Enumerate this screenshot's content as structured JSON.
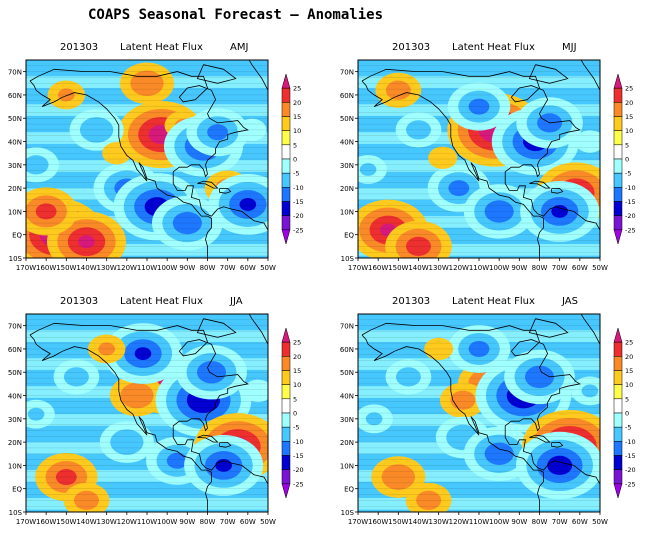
{
  "title": "COAPS Seasonal Forecast – Anomalies",
  "chart_data": [
    {
      "type": "heatmap",
      "date": "201303",
      "variable": "Latent Heat Flux",
      "season": "AMJ",
      "x_ticks": [
        "170W",
        "160W",
        "150W",
        "140W",
        "130W",
        "120W",
        "110W",
        "100W",
        "90W",
        "80W",
        "70W",
        "60W",
        "50W"
      ],
      "y_ticks": [
        "10S",
        "EQ",
        "10N",
        "20N",
        "30N",
        "40N",
        "50N",
        "60N",
        "70N"
      ],
      "xlim": [
        -170,
        -50
      ],
      "ylim": [
        -10,
        75
      ],
      "colorbar_ticks": [
        "25",
        "20",
        "15",
        "10",
        "5",
        "0",
        "-5",
        "-10",
        "-15",
        "-20",
        "-25"
      ],
      "colorbar_colors": [
        "#d7197c",
        "#ee2f2f",
        "#fa8a28",
        "#ffca1e",
        "#ffff4b",
        "#ffffff",
        "#a0ffff",
        "#46c8ff",
        "#1e78ff",
        "#0000d2",
        "#7814d2",
        "#a000e6"
      ],
      "features": [
        {
          "lon": -103,
          "lat": 43,
          "value": 20
        },
        {
          "lon": -92,
          "lat": 47,
          "value": 8
        },
        {
          "lon": -82,
          "lat": 38,
          "value": -18
        },
        {
          "lon": -75,
          "lat": 44,
          "value": -14
        },
        {
          "lon": -155,
          "lat": 0,
          "value": 22
        },
        {
          "lon": -140,
          "lat": -3,
          "value": 18
        },
        {
          "lon": -160,
          "lat": 10,
          "value": 14
        },
        {
          "lon": -120,
          "lat": 20,
          "value": -15
        },
        {
          "lon": -105,
          "lat": 12,
          "value": -20
        },
        {
          "lon": -90,
          "lat": 5,
          "value": -16
        },
        {
          "lon": -135,
          "lat": 45,
          "value": -12
        },
        {
          "lon": -150,
          "lat": 60,
          "value": 8
        },
        {
          "lon": -70,
          "lat": 20,
          "value": 10
        },
        {
          "lon": -60,
          "lat": 13,
          "value": -18
        },
        {
          "lon": -125,
          "lat": 35,
          "value": 6
        },
        {
          "lon": -165,
          "lat": 30,
          "value": -10
        },
        {
          "lon": -110,
          "lat": 65,
          "value": 12
        },
        {
          "lon": -58,
          "lat": 45,
          "value": -6
        }
      ]
    },
    {
      "type": "heatmap",
      "date": "201303",
      "variable": "Latent Heat Flux",
      "season": "MJJ",
      "x_ticks": [
        "170W",
        "160W",
        "150W",
        "140W",
        "130W",
        "120W",
        "110W",
        "100W",
        "90W",
        "80W",
        "70W",
        "60W",
        "50W"
      ],
      "y_ticks": [
        "10S",
        "EQ",
        "10N",
        "20N",
        "30N",
        "40N",
        "50N",
        "60N",
        "70N"
      ],
      "xlim": [
        -170,
        -50
      ],
      "ylim": [
        -10,
        75
      ],
      "colorbar_ticks": [
        "25",
        "20",
        "15",
        "10",
        "5",
        "0",
        "-5",
        "-10",
        "-15",
        "-20",
        "-25"
      ],
      "colorbar_colors": [
        "#d7197c",
        "#ee2f2f",
        "#fa8a28",
        "#ffca1e",
        "#ffff4b",
        "#ffffff",
        "#a0ffff",
        "#46c8ff",
        "#1e78ff",
        "#0000d2",
        "#7814d2",
        "#a000e6"
      ],
      "features": [
        {
          "lon": -102,
          "lat": 45,
          "value": 22
        },
        {
          "lon": -82,
          "lat": 40,
          "value": -20
        },
        {
          "lon": -75,
          "lat": 48,
          "value": -15
        },
        {
          "lon": -110,
          "lat": 55,
          "value": -14
        },
        {
          "lon": -155,
          "lat": 2,
          "value": 18
        },
        {
          "lon": -140,
          "lat": -5,
          "value": 15
        },
        {
          "lon": -120,
          "lat": 20,
          "value": -14
        },
        {
          "lon": -100,
          "lat": 10,
          "value": -16
        },
        {
          "lon": -62,
          "lat": 18,
          "value": 18
        },
        {
          "lon": -70,
          "lat": 10,
          "value": -18
        },
        {
          "lon": -140,
          "lat": 45,
          "value": -10
        },
        {
          "lon": -150,
          "lat": 62,
          "value": 10
        },
        {
          "lon": -128,
          "lat": 33,
          "value": 6
        },
        {
          "lon": -165,
          "lat": 28,
          "value": -8
        },
        {
          "lon": -55,
          "lat": 40,
          "value": -6
        }
      ]
    },
    {
      "type": "heatmap",
      "date": "201303",
      "variable": "Latent Heat Flux",
      "season": "JJA",
      "x_ticks": [
        "170W",
        "160W",
        "150W",
        "140W",
        "130W",
        "120W",
        "110W",
        "100W",
        "90W",
        "80W",
        "70W",
        "60W",
        "50W"
      ],
      "y_ticks": [
        "10S",
        "EQ",
        "10N",
        "20N",
        "30N",
        "40N",
        "50N",
        "60N",
        "70N"
      ],
      "xlim": [
        -170,
        -50
      ],
      "ylim": [
        -10,
        75
      ],
      "colorbar_ticks": [
        "25",
        "20",
        "15",
        "10",
        "5",
        "0",
        "-5",
        "-10",
        "-15",
        "-20",
        "-25"
      ],
      "colorbar_colors": [
        "#d7197c",
        "#ee2f2f",
        "#fa8a28",
        "#ffca1e",
        "#ffff4b",
        "#ffffff",
        "#a0ffff",
        "#46c8ff",
        "#1e78ff",
        "#0000d2",
        "#7814d2",
        "#a000e6"
      ],
      "features": [
        {
          "lon": -100,
          "lat": 45,
          "value": 18
        },
        {
          "lon": -115,
          "lat": 40,
          "value": 12
        },
        {
          "lon": -82,
          "lat": 38,
          "value": -22
        },
        {
          "lon": -78,
          "lat": 50,
          "value": -16
        },
        {
          "lon": -112,
          "lat": 58,
          "value": -18
        },
        {
          "lon": -150,
          "lat": 5,
          "value": 14
        },
        {
          "lon": -140,
          "lat": -5,
          "value": 10
        },
        {
          "lon": -120,
          "lat": 20,
          "value": -12
        },
        {
          "lon": -95,
          "lat": 12,
          "value": -14
        },
        {
          "lon": -65,
          "lat": 18,
          "value": 20
        },
        {
          "lon": -72,
          "lat": 10,
          "value": -18
        },
        {
          "lon": -145,
          "lat": 48,
          "value": -10
        },
        {
          "lon": -130,
          "lat": 60,
          "value": 8
        },
        {
          "lon": -165,
          "lat": 32,
          "value": -8
        },
        {
          "lon": -55,
          "lat": 42,
          "value": -6
        }
      ]
    },
    {
      "type": "heatmap",
      "date": "201303",
      "variable": "Latent Heat Flux",
      "season": "JAS",
      "x_ticks": [
        "170W",
        "160W",
        "150W",
        "140W",
        "130W",
        "120W",
        "110W",
        "100W",
        "90W",
        "80W",
        "70W",
        "60W",
        "50W"
      ],
      "y_ticks": [
        "10S",
        "EQ",
        "10N",
        "20N",
        "30N",
        "40N",
        "50N",
        "60N",
        "70N"
      ],
      "xlim": [
        -170,
        -50
      ],
      "ylim": [
        -10,
        75
      ],
      "colorbar_ticks": [
        "25",
        "20",
        "15",
        "10",
        "5",
        "0",
        "-5",
        "-10",
        "-15",
        "-20",
        "-25"
      ],
      "colorbar_colors": [
        "#d7197c",
        "#ee2f2f",
        "#fa8a28",
        "#ffca1e",
        "#ffff4b",
        "#ffffff",
        "#a0ffff",
        "#46c8ff",
        "#1e78ff",
        "#0000d2",
        "#7814d2",
        "#a000e6"
      ],
      "features": [
        {
          "lon": -105,
          "lat": 45,
          "value": 14
        },
        {
          "lon": -118,
          "lat": 38,
          "value": 10
        },
        {
          "lon": -88,
          "lat": 40,
          "value": -22
        },
        {
          "lon": -80,
          "lat": 48,
          "value": -16
        },
        {
          "lon": -110,
          "lat": 60,
          "value": -14
        },
        {
          "lon": -150,
          "lat": 5,
          "value": 12
        },
        {
          "lon": -135,
          "lat": -5,
          "value": 10
        },
        {
          "lon": -118,
          "lat": 22,
          "value": -12
        },
        {
          "lon": -100,
          "lat": 15,
          "value": -16
        },
        {
          "lon": -65,
          "lat": 18,
          "value": 22
        },
        {
          "lon": -70,
          "lat": 10,
          "value": -20
        },
        {
          "lon": -145,
          "lat": 48,
          "value": -10
        },
        {
          "lon": -130,
          "lat": 60,
          "value": 6
        },
        {
          "lon": -162,
          "lat": 30,
          "value": -8
        },
        {
          "lon": -55,
          "lat": 42,
          "value": -8
        }
      ]
    }
  ]
}
